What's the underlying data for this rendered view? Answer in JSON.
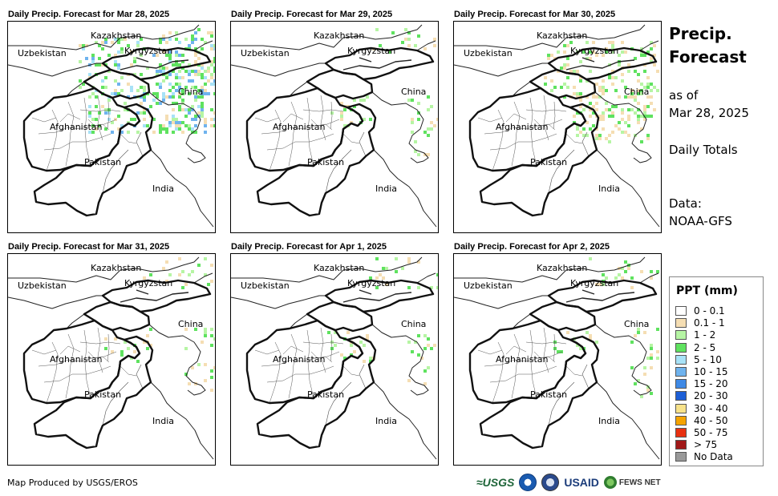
{
  "panels": [
    {
      "title": "Daily Precip. Forecast for Mar 28, 2025",
      "intensity": "high"
    },
    {
      "title": "Daily Precip. Forecast for Mar 29, 2025",
      "intensity": "low"
    },
    {
      "title": "Daily Precip. Forecast for Mar 30, 2025",
      "intensity": "medium"
    },
    {
      "title": "Daily Precip. Forecast for Mar 31, 2025",
      "intensity": "low"
    },
    {
      "title": "Daily Precip. Forecast for Apr 1, 2025",
      "intensity": "low"
    },
    {
      "title": "Daily Precip. Forecast for Apr 2, 2025",
      "intensity": "low"
    }
  ],
  "map_labels": {
    "kazakhstan": "Kazakhstan",
    "uzbekistan": "Uzbekistan",
    "kyrgyzstan": "Kyrgyzstan",
    "china": "China",
    "afghanistan": "Afghanistan",
    "pakistan": "Pakistan",
    "india": "India"
  },
  "sidebar": {
    "title_line1": "Precip.",
    "title_line2": "Forecast",
    "asof_line1": "as of",
    "asof_line2": "Mar 28, 2025",
    "totals": "Daily Totals",
    "data_line1": "Data:",
    "data_line2": "NOAA-GFS"
  },
  "legend": {
    "title": "PPT (mm)",
    "items": [
      {
        "label": "0 - 0.1",
        "color": "#ffffff"
      },
      {
        "label": "0.1 - 1",
        "color": "#f5deb3"
      },
      {
        "label": "1 - 2",
        "color": "#b6f5a4"
      },
      {
        "label": "2 - 5",
        "color": "#5fe25f"
      },
      {
        "label": "5 - 10",
        "color": "#a8e2f7"
      },
      {
        "label": "10 - 15",
        "color": "#6fb3ee"
      },
      {
        "label": "15 - 20",
        "color": "#3f8ae6"
      },
      {
        "label": "20 - 30",
        "color": "#1d5fd6"
      },
      {
        "label": "30 - 40",
        "color": "#f7e28a"
      },
      {
        "label": "40 - 50",
        "color": "#f5a300"
      },
      {
        "label": "50 - 75",
        "color": "#e83010"
      },
      {
        "label": "> 75",
        "color": "#a01818"
      },
      {
        "label": "No Data",
        "color": "#999999"
      }
    ]
  },
  "credit": "Map Produced by USGS/EROS",
  "logos": {
    "usgs": "≈USGS",
    "usaid": "USAID",
    "fews": "FEWS NET"
  }
}
